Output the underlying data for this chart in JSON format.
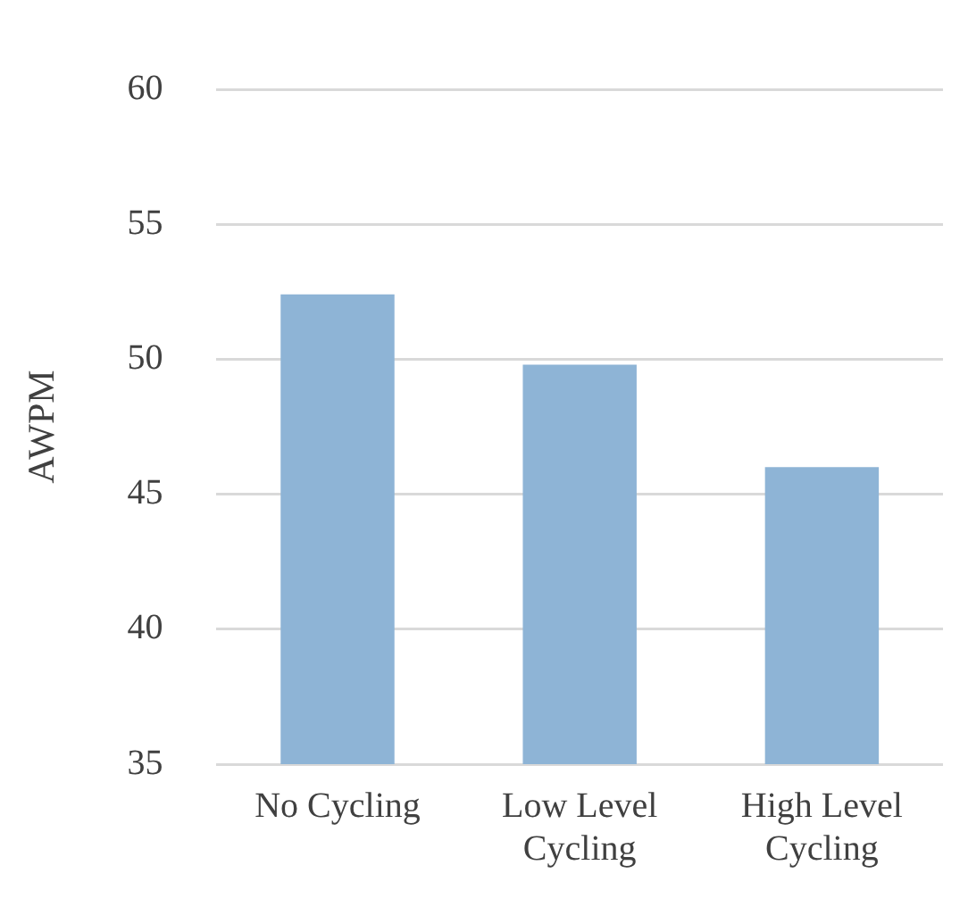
{
  "chart_data": {
    "type": "bar",
    "ylabel": "AWPM",
    "categories": [
      "No Cycling",
      "Low Level Cycling",
      "High Level Cycling"
    ],
    "values": [
      52.4,
      49.8,
      46.0
    ],
    "color": "#8eb4d6",
    "ylim": [
      35,
      60
    ],
    "yticks": [
      35,
      40,
      45,
      50,
      55,
      60
    ],
    "grid": "y"
  }
}
